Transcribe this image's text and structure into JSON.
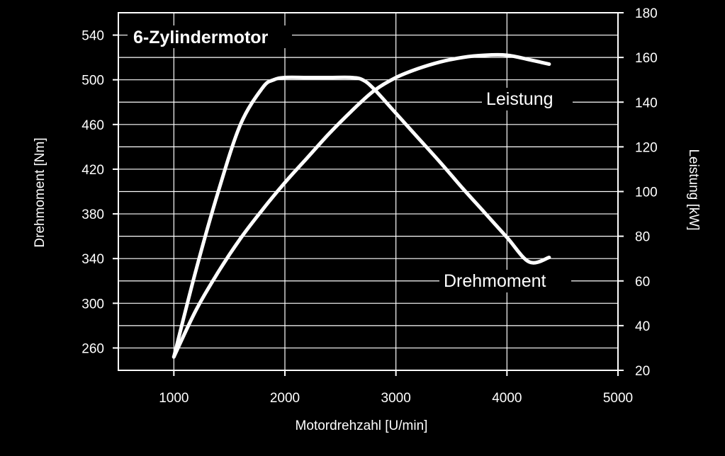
{
  "chart_data": {
    "type": "line",
    "title": "",
    "xlabel": "Motordrehzahl [U/min]",
    "ylabel_left": "Drehmoment [Nm]",
    "ylabel_right": "Leistung [kW]",
    "xlim": [
      500,
      5000
    ],
    "ylim_left": [
      240,
      560
    ],
    "ylim_right": [
      20,
      180
    ],
    "xticks": [
      "1000",
      "2000",
      "3000",
      "4000",
      "5000"
    ],
    "yticks_left": [
      "260",
      "300",
      "340",
      "380",
      "420",
      "460",
      "500",
      "540"
    ],
    "yticks_right": [
      "20",
      "40",
      "60",
      "80",
      "100",
      "120",
      "140",
      "160",
      "180"
    ],
    "grid": true,
    "annotations": {
      "motor": "6-Zylindermotor",
      "power": "Leistung",
      "torque": "Drehmoment"
    },
    "colors": {
      "background": "#000000",
      "line": "#ffffff",
      "grid": "#ffffff"
    },
    "series": [
      {
        "name": "Drehmoment",
        "axis": "left",
        "x": [
          1000,
          1200,
          1400,
          1600,
          1800,
          1900,
          2000,
          2200,
          2400,
          2600,
          2700,
          2800,
          3000,
          3200,
          3400,
          3600,
          3800,
          4000,
          4200,
          4380
        ],
        "y": [
          252,
          330,
          400,
          460,
          493,
          500,
          502,
          502,
          502,
          502,
          500,
          492,
          470,
          448,
          426,
          403,
          381,
          359,
          337,
          341
        ]
      },
      {
        "name": "Leistung",
        "axis": "right",
        "x": [
          1000,
          1200,
          1400,
          1600,
          1800,
          2000,
          2200,
          2400,
          2600,
          2800,
          3000,
          3200,
          3400,
          3600,
          3800,
          4000,
          4200,
          4380
        ],
        "y": [
          26,
          47,
          64,
          79,
          92,
          104,
          115,
          126,
          136,
          145,
          151,
          155,
          158,
          160,
          161,
          161,
          159,
          157
        ]
      }
    ]
  }
}
